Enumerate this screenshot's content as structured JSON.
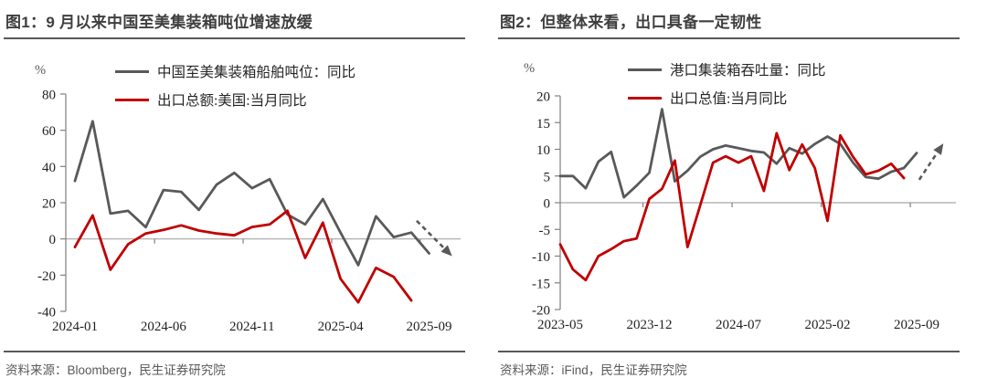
{
  "colors": {
    "gray_series": "#595959",
    "red_series": "#c00000",
    "title_text": "#3f3f3f",
    "rule_line": "#595959",
    "axis_line": "#808080",
    "zero_line": "#a6a6a6",
    "tick_text": "#1f1f1f",
    "pct_text": "#595959",
    "source_text": "#595959",
    "arrow": "#595959"
  },
  "figures": [
    {
      "title": "图1：9 月以来中国至美集装箱吨位增速放缓",
      "source": "资料来源：Bloomberg，民生证券研究院"
    },
    {
      "title": "图2：但整体来看，出口具备一定韧性",
      "source": "资料来源：iFind，民生证券研究院"
    }
  ],
  "chart_data": [
    {
      "type": "line",
      "title": "图1：9 月以来中国至美集装箱吨位增速放缓",
      "ylabel": "%",
      "ylim": [
        -40,
        80
      ],
      "yticks": [
        80,
        60,
        40,
        20,
        0,
        -20,
        -40
      ],
      "grid": "zero-line-only",
      "legend_position": "top-inside",
      "x": [
        "2024-01",
        "2024-02",
        "2024-03",
        "2024-04",
        "2024-05",
        "2024-06",
        "2024-07",
        "2024-08",
        "2024-09",
        "2024-10",
        "2024-11",
        "2024-12",
        "2025-01",
        "2025-02",
        "2025-03",
        "2025-04",
        "2025-05",
        "2025-06",
        "2025-07",
        "2025-08",
        "2025-09"
      ],
      "xticks": [
        "2024-01",
        "2024-06",
        "2024-11",
        "2025-04",
        "2025-09"
      ],
      "xtick_indices": [
        0,
        5,
        10,
        15,
        20
      ],
      "series": [
        {
          "name": "中国至美集装箱船舶吨位：同比",
          "color_key": "gray_series",
          "values": [
            32,
            65,
            14,
            15.5,
            6.5,
            27,
            26,
            16,
            30,
            36.5,
            28,
            33,
            13.5,
            8,
            22,
            3.5,
            -14.5,
            12.5,
            1,
            3.5,
            -8
          ]
        },
        {
          "name": "出口总额:美国:当月同比",
          "color_key": "red_series",
          "values": [
            -4.5,
            13,
            -17,
            -3,
            3,
            5,
            7.5,
            4.6,
            3,
            2,
            6.6,
            8,
            15.5,
            -10.5,
            9,
            -22,
            -35,
            -16,
            -21,
            -34,
            null
          ]
        }
      ],
      "annotation": {
        "type": "trend-arrow",
        "direction": "down-right",
        "from": {
          "i": 19.3,
          "v": 10
        },
        "to": {
          "i": 21.3,
          "v": -9.5
        }
      }
    },
    {
      "type": "line",
      "title": "图2：但整体来看，出口具备一定韧性",
      "ylabel": "%",
      "ylim": [
        -20,
        20
      ],
      "yticks": [
        20,
        15,
        10,
        5,
        0,
        -5,
        -10,
        -15,
        -20
      ],
      "grid": "zero-line-only",
      "legend_position": "top-inside",
      "x": [
        "2023-05",
        "2023-06",
        "2023-07",
        "2023-08",
        "2023-09",
        "2023-10",
        "2023-11",
        "2023-12",
        "2024-01",
        "2024-02",
        "2024-03",
        "2024-04",
        "2024-05",
        "2024-06",
        "2024-07",
        "2024-08",
        "2024-09",
        "2024-10",
        "2024-11",
        "2024-12",
        "2025-01",
        "2025-02",
        "2025-03",
        "2025-04",
        "2025-05",
        "2025-06",
        "2025-07",
        "2025-08",
        "2025-09"
      ],
      "xticks": [
        "2023-05",
        "2023-12",
        "2024-07",
        "2025-02",
        "2025-09"
      ],
      "xtick_indices": [
        0,
        7,
        14,
        21,
        28
      ],
      "series": [
        {
          "name": "港口集装箱吞吐量：同比",
          "color_key": "gray_series",
          "values": [
            5,
            5,
            2.7,
            7.7,
            9.5,
            1,
            3.2,
            5.6,
            17.5,
            4,
            6,
            8.6,
            10,
            10.7,
            10.2,
            9.7,
            9.4,
            7.3,
            10.2,
            9.2,
            11,
            12.4,
            11,
            7.5,
            4.8,
            4.5,
            5.8,
            6.5,
            9.3
          ]
        },
        {
          "name": "出口总值:当月同比",
          "color_key": "red_series",
          "values": [
            -7.8,
            -12.5,
            -14.5,
            -10,
            -8.7,
            -7.2,
            -6.7,
            0.7,
            2.6,
            7.9,
            -8.3,
            -0.5,
            7.5,
            8.7,
            7.5,
            8.7,
            2.2,
            13,
            6.1,
            10.9,
            6.5,
            -3.4,
            12.6,
            8.6,
            5.3,
            6,
            7.3,
            4.6,
            null
          ]
        }
      ],
      "annotation": {
        "type": "trend-arrow",
        "direction": "up-right",
        "from": {
          "i": 28.2,
          "v": 4.3
        },
        "to": {
          "i": 30.1,
          "v": 11.1
        }
      }
    }
  ]
}
